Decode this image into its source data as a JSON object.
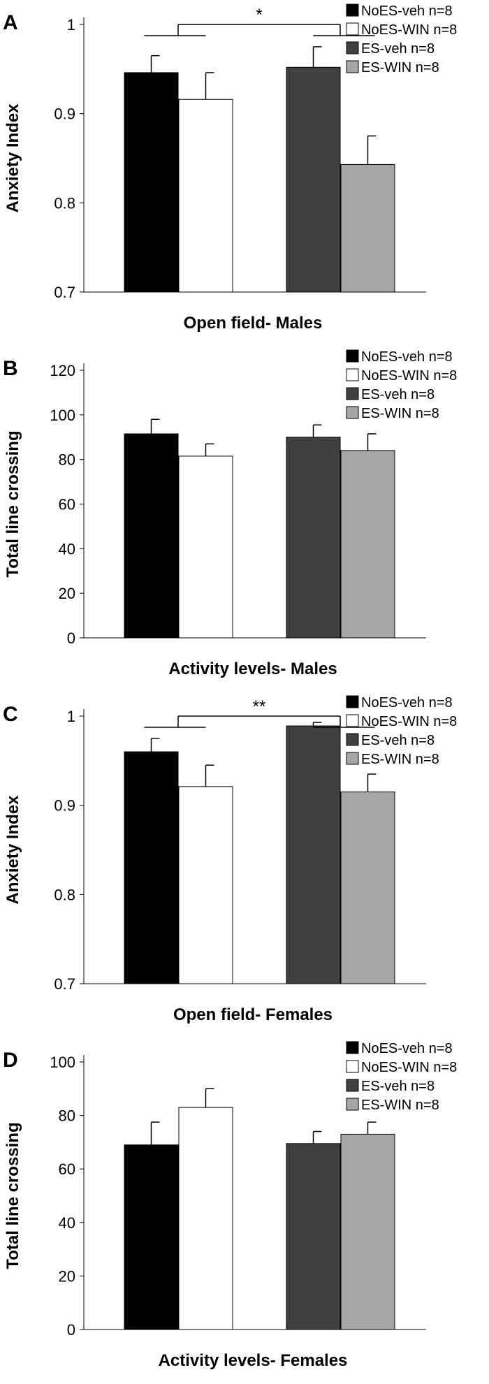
{
  "chart_data": [
    {
      "panel_letter": "A",
      "type": "bar",
      "ylabel": "Anxiety Index",
      "xlabel": "Open field- Males",
      "ylim": [
        0.7,
        1.0
      ],
      "yticks": [
        "0.7",
        "0.8",
        "0.9",
        "1"
      ],
      "tick_values": [
        0.7,
        0.8,
        0.9,
        1.0
      ],
      "grid": false,
      "legend_position": "top-right",
      "series": [
        {
          "name": "NoES-veh n=8",
          "value": 0.946,
          "error": 0.019,
          "color": "#000000"
        },
        {
          "name": "NoES-WIN n=8",
          "value": 0.916,
          "error": 0.03,
          "color": "#ffffff"
        },
        {
          "name": "ES-veh n=8",
          "value": 0.952,
          "error": 0.023,
          "color": "#404040"
        },
        {
          "name": "ES-WIN n=8",
          "value": 0.843,
          "error": 0.032,
          "color": "#a6a6a6"
        }
      ],
      "significance": {
        "label": "*",
        "level": 1.0
      }
    },
    {
      "panel_letter": "B",
      "type": "bar",
      "ylabel": "Total line crossing",
      "xlabel": "Activity levels- Males",
      "ylim": [
        0,
        120
      ],
      "yticks": [
        "0",
        "20",
        "40",
        "60",
        "80",
        "100",
        "120"
      ],
      "tick_values": [
        0,
        20,
        40,
        60,
        80,
        100,
        120
      ],
      "grid": false,
      "legend_position": "top-right",
      "series": [
        {
          "name": "NoES-veh n=8",
          "value": 91.5,
          "error": 6.5,
          "color": "#000000"
        },
        {
          "name": "NoES-WIN n=8",
          "value": 81.5,
          "error": 5.5,
          "color": "#ffffff"
        },
        {
          "name": "ES-veh n=8",
          "value": 90.0,
          "error": 5.5,
          "color": "#404040"
        },
        {
          "name": "ES-WIN n=8",
          "value": 84.0,
          "error": 7.5,
          "color": "#a6a6a6"
        }
      ]
    },
    {
      "panel_letter": "C",
      "type": "bar",
      "ylabel": "Anxiety Index",
      "xlabel": "Open field- Females",
      "ylim": [
        0.7,
        1.0
      ],
      "yticks": [
        "0.7",
        "0.8",
        "0.9",
        "1"
      ],
      "tick_values": [
        0.7,
        0.8,
        0.9,
        1.0
      ],
      "grid": false,
      "legend_position": "top-right",
      "series": [
        {
          "name": "NoES-veh n=8",
          "value": 0.96,
          "error": 0.015,
          "color": "#000000"
        },
        {
          "name": "NoES-WIN n=8",
          "value": 0.921,
          "error": 0.024,
          "color": "#ffffff"
        },
        {
          "name": "ES-veh n=8",
          "value": 0.989,
          "error": 0.004,
          "color": "#404040"
        },
        {
          "name": "ES-WIN n=8",
          "value": 0.915,
          "error": 0.02,
          "color": "#a6a6a6"
        }
      ],
      "significance": {
        "label": "**",
        "level": 1.0
      }
    },
    {
      "panel_letter": "D",
      "type": "bar",
      "ylabel": "Total line crossing",
      "xlabel": "Activity levels- Females",
      "ylim": [
        0,
        100
      ],
      "yticks": [
        "0",
        "20",
        "40",
        "60",
        "80",
        "100"
      ],
      "tick_values": [
        0,
        20,
        40,
        60,
        80,
        100
      ],
      "grid": false,
      "legend_position": "top-right",
      "series": [
        {
          "name": "NoES-veh n=8",
          "value": 69.0,
          "error": 8.5,
          "color": "#000000"
        },
        {
          "name": "NoES-WIN n=8",
          "value": 83.0,
          "error": 7.0,
          "color": "#ffffff"
        },
        {
          "name": "ES-veh n=8",
          "value": 69.5,
          "error": 4.5,
          "color": "#404040"
        },
        {
          "name": "ES-WIN n=8",
          "value": 73.0,
          "error": 4.5,
          "color": "#a6a6a6"
        }
      ]
    }
  ]
}
